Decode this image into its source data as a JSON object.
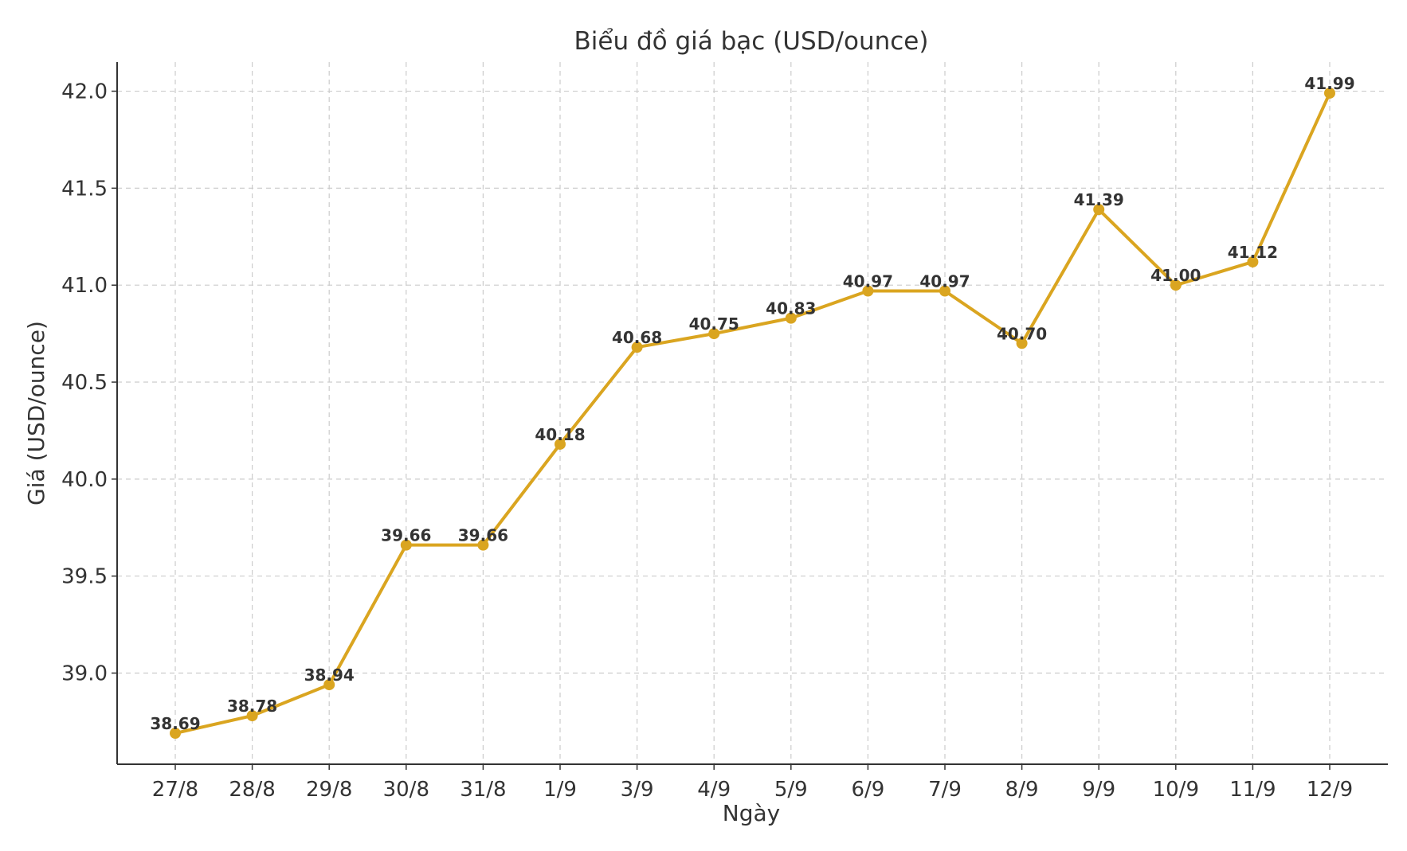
{
  "chart_data": {
    "type": "line",
    "title": "Biểu đồ giá bạc (USD/ounce)",
    "xlabel": "Ngày",
    "ylabel": "Giá (USD/ounce)",
    "categories": [
      "27/8",
      "28/8",
      "29/8",
      "30/8",
      "31/8",
      "1/9",
      "3/9",
      "4/9",
      "5/9",
      "6/9",
      "7/9",
      "8/9",
      "9/9",
      "10/9",
      "11/9",
      "12/9"
    ],
    "values": [
      38.69,
      38.78,
      38.94,
      39.66,
      39.66,
      40.18,
      40.68,
      40.75,
      40.83,
      40.97,
      40.97,
      40.7,
      41.39,
      41.0,
      41.12,
      41.99
    ],
    "data_labels": [
      "38.69",
      "38.78",
      "38.94",
      "39.66",
      "39.66",
      "40.18",
      "40.68",
      "40.75",
      "40.83",
      "40.97",
      "40.97",
      "40.70",
      "41.39",
      "41.00",
      "41.12",
      "41.99"
    ],
    "ylim": [
      38.53,
      42.15
    ],
    "yticks": [
      39.0,
      39.5,
      40.0,
      40.5,
      41.0,
      41.5,
      42.0
    ],
    "ytick_labels": [
      "39.0",
      "39.5",
      "40.0",
      "40.5",
      "41.0",
      "41.5",
      "42.0"
    ],
    "grid": true,
    "line_color": "#DAA520",
    "marker": "circle"
  }
}
